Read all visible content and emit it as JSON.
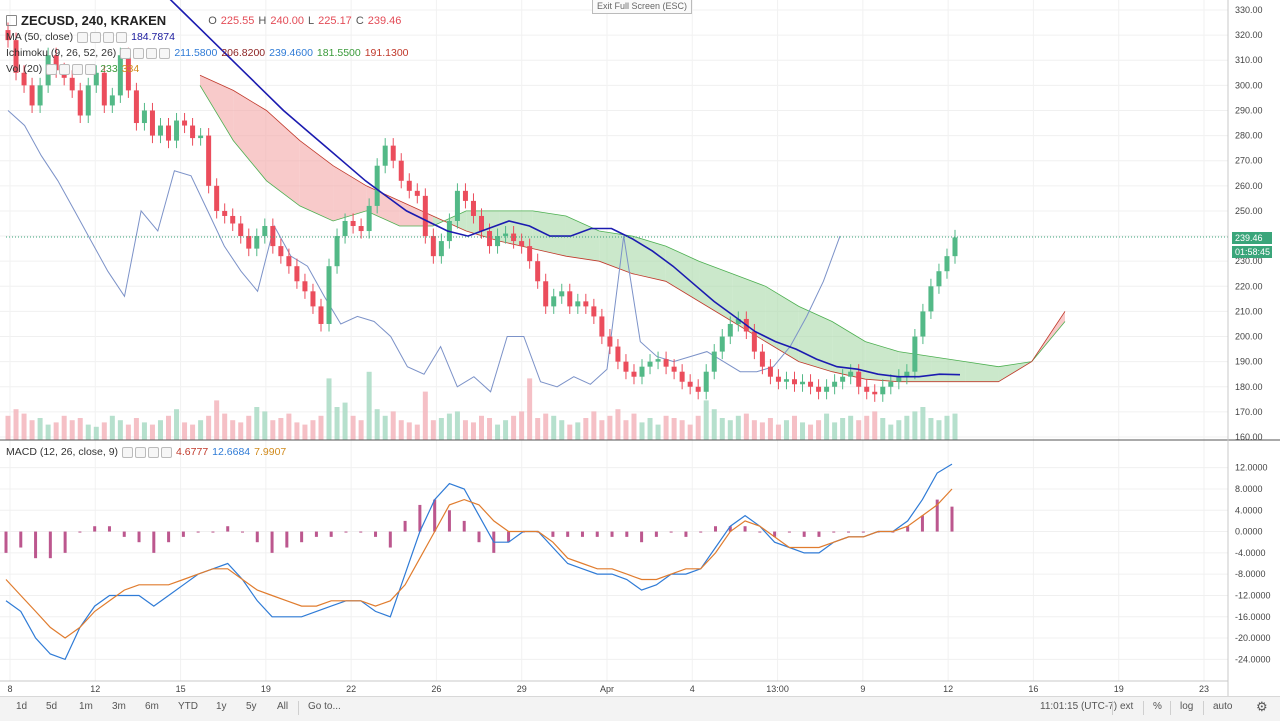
{
  "exit_fullscreen": "Exit Full Screen (ESC)",
  "main_legend": {
    "symbol": "ZECUSD, 240, KRAKEN",
    "ohlc": [
      {
        "l": "O",
        "v": "225.55"
      },
      {
        "l": "H",
        "v": "240.00"
      },
      {
        "l": "L",
        "v": "225.17"
      },
      {
        "l": "C",
        "v": "239.46"
      }
    ]
  },
  "indicators": [
    {
      "name": "MA (50, close)",
      "values": [
        {
          "v": "184.7874",
          "color": "#1a1a9e"
        }
      ]
    },
    {
      "name": "Ichimoku (9, 26, 52, 26)",
      "values": [
        {
          "v": "211.5800",
          "color": "#2f7bd6"
        },
        {
          "v": "206.8200",
          "color": "#8a1f1f"
        },
        {
          "v": "239.4600",
          "color": "#2f7bd6"
        },
        {
          "v": "181.5500",
          "color": "#3a9a3a"
        },
        {
          "v": "191.1300",
          "color": "#c0392b"
        }
      ]
    },
    {
      "name": "Vol (20)",
      "values": [
        {
          "v": "233",
          "color": "#3a9a3a"
        },
        {
          "v": "334",
          "color": "#d08a1c"
        }
      ]
    }
  ],
  "macd_legend": {
    "name": "MACD (12, 26, close, 9)",
    "values": [
      {
        "v": "4.6777",
        "color": "#c0392b"
      },
      {
        "v": "12.6684",
        "color": "#2f7bd6"
      },
      {
        "v": "7.9907",
        "color": "#d08a1c"
      }
    ]
  },
  "price_badges": {
    "last_price": "239.46",
    "countdown": "01:58:45",
    "color": "#3aa57a"
  },
  "price_axis_labels": [
    "330.00",
    "320.00",
    "310.00",
    "300.00",
    "290.00",
    "280.00",
    "270.00",
    "260.00",
    "250.00",
    "240.00",
    "230.00",
    "220.00",
    "210.00",
    "200.00",
    "190.00",
    "180.00",
    "170.00",
    "160.00"
  ],
  "macd_axis_labels": [
    "12.0000",
    "8.0000",
    "4.0000",
    "0.0000",
    "-4.0000",
    "-8.0000",
    "-12.0000",
    "-16.0000",
    "-20.0000",
    "-24.0000"
  ],
  "time_axis_labels": [
    "8",
    "12",
    "15",
    "19",
    "22",
    "26",
    "29",
    "Apr",
    "4",
    "13:00",
    "9",
    "12",
    "16",
    "19",
    "23"
  ],
  "bottom_bar": {
    "timeframes": [
      "1d",
      "5d",
      "1m",
      "3m",
      "6m",
      "YTD",
      "1y",
      "5y",
      "All"
    ],
    "goto": "Go to...",
    "clock": "11:01:15 (UTC-7)",
    "right_buttons": [
      "ext",
      "%",
      "log",
      "auto"
    ]
  },
  "colors": {
    "up": "#53b987",
    "down": "#eb4d5c",
    "ma": "#1b1bb0",
    "macd": "#2f7bd6",
    "signal": "#e07c2e",
    "conv": "#7c92c8"
  },
  "chart_data": [
    {
      "type": "candlestick",
      "title": "ZECUSD, 240, KRAKEN",
      "ylim": [
        160,
        330
      ],
      "close_prices": [
        318,
        305,
        300,
        292,
        300,
        312,
        306,
        303,
        298,
        288,
        300,
        305,
        292,
        296,
        312,
        298,
        285,
        290,
        280,
        284,
        278,
        286,
        284,
        279,
        280,
        260,
        250,
        248,
        245,
        240,
        235,
        240,
        244,
        236,
        232,
        228,
        222,
        218,
        212,
        205,
        228,
        240,
        246,
        244,
        242,
        252,
        268,
        276,
        270,
        262,
        258,
        256,
        240,
        232,
        238,
        246,
        258,
        254,
        248,
        242,
        236,
        240,
        241,
        238,
        236,
        230,
        222,
        212,
        216,
        218,
        212,
        214,
        212,
        208,
        200,
        196,
        190,
        186,
        184,
        188,
        190,
        191,
        188,
        186,
        182,
        180,
        178,
        186,
        194,
        200,
        205,
        207,
        202,
        194,
        188,
        184,
        182,
        183,
        181,
        182,
        180,
        178,
        180,
        182,
        184,
        186,
        180,
        178,
        177,
        180,
        182,
        184,
        186,
        200,
        210,
        220,
        226,
        232,
        239.46
      ],
      "ma50": [
        345,
        338,
        330,
        322,
        314,
        306,
        298,
        290,
        283,
        276,
        269,
        262,
        256,
        250,
        246,
        242,
        240,
        243,
        246,
        244,
        240,
        240,
        243,
        243,
        239,
        234,
        228,
        221,
        214,
        208,
        202,
        198,
        195,
        191,
        188,
        187,
        185,
        184,
        184,
        185,
        184.7874
      ],
      "ichimoku_conversion": [
        290,
        284,
        272,
        262,
        250,
        238,
        226,
        216,
        250,
        242,
        266,
        264,
        250,
        236,
        226,
        218,
        244,
        232,
        228,
        216,
        205,
        208,
        206,
        200,
        188,
        185,
        196,
        180,
        184,
        178,
        200,
        200,
        182,
        180,
        184,
        181,
        187,
        240,
        198,
        192,
        190,
        192,
        194,
        190,
        186,
        186,
        188,
        196,
        208,
        222,
        240
      ],
      "ichimoku_span_a": [
        300,
        278,
        262,
        252,
        246,
        250,
        244,
        244,
        250,
        250,
        250,
        248,
        242,
        240,
        236,
        230,
        225,
        220,
        212,
        206,
        198,
        194,
        192,
        190,
        188,
        190,
        206
      ],
      "ichimoku_span_b": [
        304,
        298,
        290,
        278,
        268,
        260,
        254,
        248,
        242,
        238,
        235,
        232,
        230,
        225,
        222,
        214,
        206,
        198,
        190,
        186,
        183,
        182,
        182,
        182,
        182,
        190,
        210
      ],
      "volume_max": 100,
      "volume": [
        22,
        28,
        24,
        18,
        20,
        14,
        16,
        22,
        18,
        20,
        14,
        12,
        16,
        22,
        18,
        14,
        20,
        16,
        14,
        18,
        22,
        28,
        16,
        14,
        18,
        22,
        36,
        24,
        18,
        16,
        22,
        30,
        26,
        18,
        20,
        24,
        16,
        14,
        18,
        22,
        56,
        30,
        34,
        22,
        18,
        62,
        28,
        22,
        26,
        18,
        16,
        14,
        44,
        18,
        20,
        24,
        26,
        18,
        16,
        22,
        20,
        14,
        18,
        22,
        26,
        56,
        20,
        24,
        22,
        18,
        14,
        16,
        20,
        26,
        18,
        22,
        28,
        18,
        24,
        16,
        20,
        14,
        22,
        20,
        18,
        14,
        22,
        36,
        28,
        20,
        18,
        22,
        24,
        18,
        16,
        20,
        14,
        18,
        22,
        16,
        14,
        18,
        24,
        16,
        20,
        22,
        18,
        22,
        26,
        20,
        14,
        18,
        22,
        26,
        30,
        20,
        18,
        22,
        24
      ]
    },
    {
      "type": "line",
      "title": "MACD (12, 26, close, 9)",
      "ylim": [
        -26,
        14
      ],
      "series": [
        {
          "name": "MACD",
          "values": [
            -13,
            -15,
            -20,
            -23,
            -24,
            -18,
            -14,
            -12,
            -12,
            -12,
            -14,
            -12,
            -10,
            -8,
            -7,
            -6,
            -9,
            -13,
            -16,
            -16,
            -16,
            -15,
            -14,
            -13,
            -13,
            -15,
            -16,
            -8,
            0,
            6,
            9,
            8,
            3,
            -2,
            -2,
            0,
            0,
            -3,
            -6,
            -7,
            -8,
            -8,
            -9,
            -11,
            -10,
            -8,
            -8,
            -7,
            -3,
            1,
            3,
            1,
            -2,
            -3,
            -4,
            -4,
            -2,
            -1,
            -1,
            0,
            0,
            2,
            6,
            11,
            12.6684
          ]
        },
        {
          "name": "Signal",
          "values": [
            -9,
            -12,
            -15,
            -18,
            -20,
            -18,
            -15,
            -13,
            -11,
            -10,
            -10,
            -10,
            -9,
            -8,
            -7,
            -7,
            -9,
            -11,
            -12,
            -13,
            -14,
            -14,
            -13,
            -13,
            -13,
            -14,
            -13,
            -10,
            -5,
            0,
            5,
            6,
            5,
            2,
            0,
            0,
            0,
            -2,
            -5,
            -6,
            -7,
            -7,
            -8,
            -9,
            -9,
            -8,
            -7,
            -7,
            -4,
            0,
            2,
            1,
            -1,
            -3,
            -3,
            -3,
            -2,
            -1,
            -1,
            0,
            0,
            1,
            3,
            5,
            7.9907
          ]
        },
        {
          "name": "Histogram",
          "values": [
            -4,
            -3,
            -5,
            -5,
            -4,
            0,
            1,
            1,
            -1,
            -2,
            -4,
            -2,
            -1,
            0,
            0,
            1,
            0,
            -2,
            -4,
            -3,
            -2,
            -1,
            -1,
            0,
            0,
            -1,
            -3,
            2,
            5,
            6,
            4,
            2,
            -2,
            -4,
            -2,
            0,
            0,
            -1,
            -1,
            -1,
            -1,
            -1,
            -1,
            -2,
            -1,
            0,
            -1,
            0,
            1,
            1,
            1,
            0,
            -1,
            0,
            -1,
            -1,
            0,
            0,
            0,
            0,
            0,
            1,
            3,
            6,
            4.6777
          ]
        }
      ]
    }
  ]
}
